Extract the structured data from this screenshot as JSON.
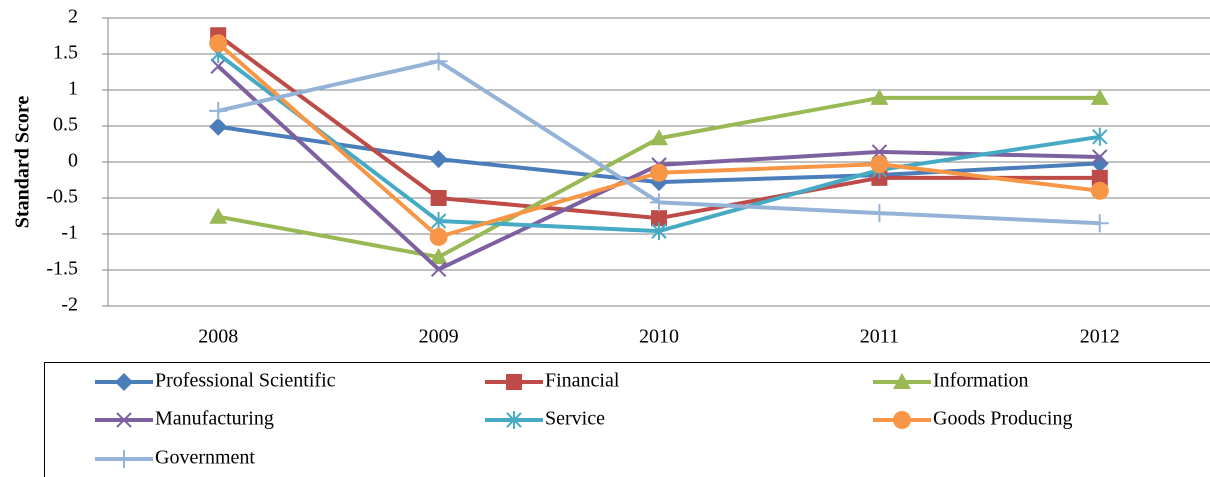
{
  "chart_data": {
    "type": "line",
    "y_label": "Standard Score",
    "categories": [
      "2008",
      "2009",
      "2010",
      "2011",
      "2012"
    ],
    "series": [
      {
        "name": "Professional Scientific",
        "color": "#4a7ebb",
        "marker": "diamond",
        "values": [
          0.49,
          0.04,
          -0.28,
          -0.18,
          -0.02
        ]
      },
      {
        "name": "Financial",
        "color": "#be4b48",
        "marker": "square",
        "values": [
          1.76,
          -0.5,
          -0.78,
          -0.22,
          -0.22
        ]
      },
      {
        "name": "Information",
        "color": "#98b954",
        "marker": "triangle",
        "values": [
          -0.76,
          -1.32,
          0.33,
          0.89,
          0.89
        ]
      },
      {
        "name": "Manufacturing",
        "color": "#7d60a0",
        "marker": "x",
        "values": [
          1.33,
          -1.49,
          -0.04,
          0.14,
          0.07
        ]
      },
      {
        "name": "Service",
        "color": "#46aac5",
        "marker": "asterisk",
        "values": [
          1.5,
          -0.82,
          -0.96,
          -0.11,
          0.35
        ]
      },
      {
        "name": "Goods Producing",
        "color": "#f79646",
        "marker": "circle",
        "values": [
          1.65,
          -1.04,
          -0.15,
          -0.03,
          -0.4
        ]
      },
      {
        "name": "Government",
        "color": "#95b3d7",
        "marker": "plus",
        "values": [
          0.71,
          1.4,
          -0.56,
          -0.71,
          -0.85
        ]
      }
    ],
    "ylim": [
      -2,
      2
    ],
    "yticks": [
      -2,
      -1.5,
      -1,
      -0.5,
      0,
      0.5,
      1,
      1.5,
      2
    ],
    "grid": true,
    "legend": "bottom"
  }
}
